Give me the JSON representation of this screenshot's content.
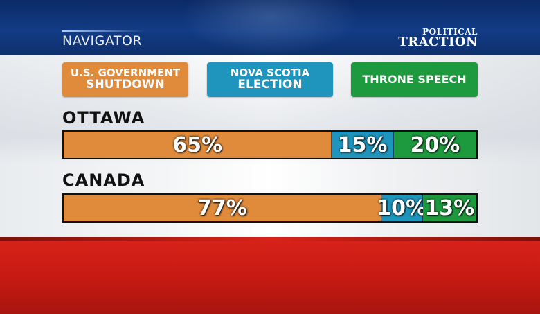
{
  "header": {
    "section_label": "NAVIGATOR",
    "brand_top": "POLITICAL",
    "brand_bottom": "TRACTION"
  },
  "chart_data": {
    "type": "bar",
    "stacked": true,
    "orientation": "horizontal",
    "categories": [
      "OTTAWA",
      "CANADA"
    ],
    "series": [
      {
        "name": "U.S. GOVERNMENT SHUTDOWN",
        "name_lines": [
          "U.S. GOVERNMENT",
          "SHUTDOWN"
        ],
        "color": "#e08b3c",
        "values": [
          65,
          77
        ],
        "labels": [
          "65%",
          "77%"
        ]
      },
      {
        "name": "NOVA SCOTIA ELECTION",
        "name_lines": [
          "NOVA SCOTIA",
          "ELECTION"
        ],
        "color": "#1f95bd",
        "values": [
          15,
          10
        ],
        "labels": [
          "15%",
          "10%"
        ]
      },
      {
        "name": "THRONE SPEECH",
        "name_lines": [
          "THRONE SPEECH"
        ],
        "color": "#1e9a3e",
        "values": [
          20,
          13
        ],
        "labels": [
          "20%",
          "13%"
        ]
      }
    ],
    "xlim": [
      0,
      100
    ],
    "unit": "%",
    "legend": "top"
  }
}
